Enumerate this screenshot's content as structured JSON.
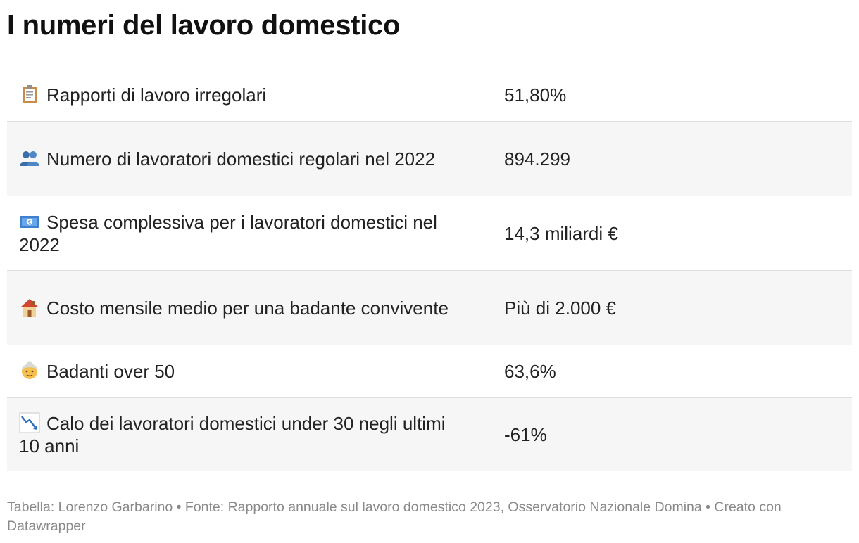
{
  "title": "I numeri del lavoro domestico",
  "rows": [
    {
      "icon": "clipboard-icon",
      "label": "Rapporti di lavoro irregolari",
      "value": "51,80%"
    },
    {
      "icon": "people-icon",
      "label": "Numero di lavoratori domestici regolari nel 2022",
      "value": "894.299"
    },
    {
      "icon": "banknote-icon",
      "label": "Spesa complessiva per i lavoratori domestici nel 2022",
      "value": "14,3 miliardi €"
    },
    {
      "icon": "house-icon",
      "label": "Costo mensile medio per una badante convivente",
      "value": "Più di 2.000 €"
    },
    {
      "icon": "older-woman-icon",
      "label": "Badanti over 50",
      "value": "63,6%"
    },
    {
      "icon": "chart-decreasing-icon",
      "label": "Calo dei lavoratori domestici under 30 negli ultimi 10 anni",
      "value": "-61%"
    }
  ],
  "footer": "Tabella: Lorenzo Garbarino • Fonte: Rapporto annuale sul lavoro domestico 2023, Osservatorio Nazionale Domina • Creato con Datawrapper"
}
